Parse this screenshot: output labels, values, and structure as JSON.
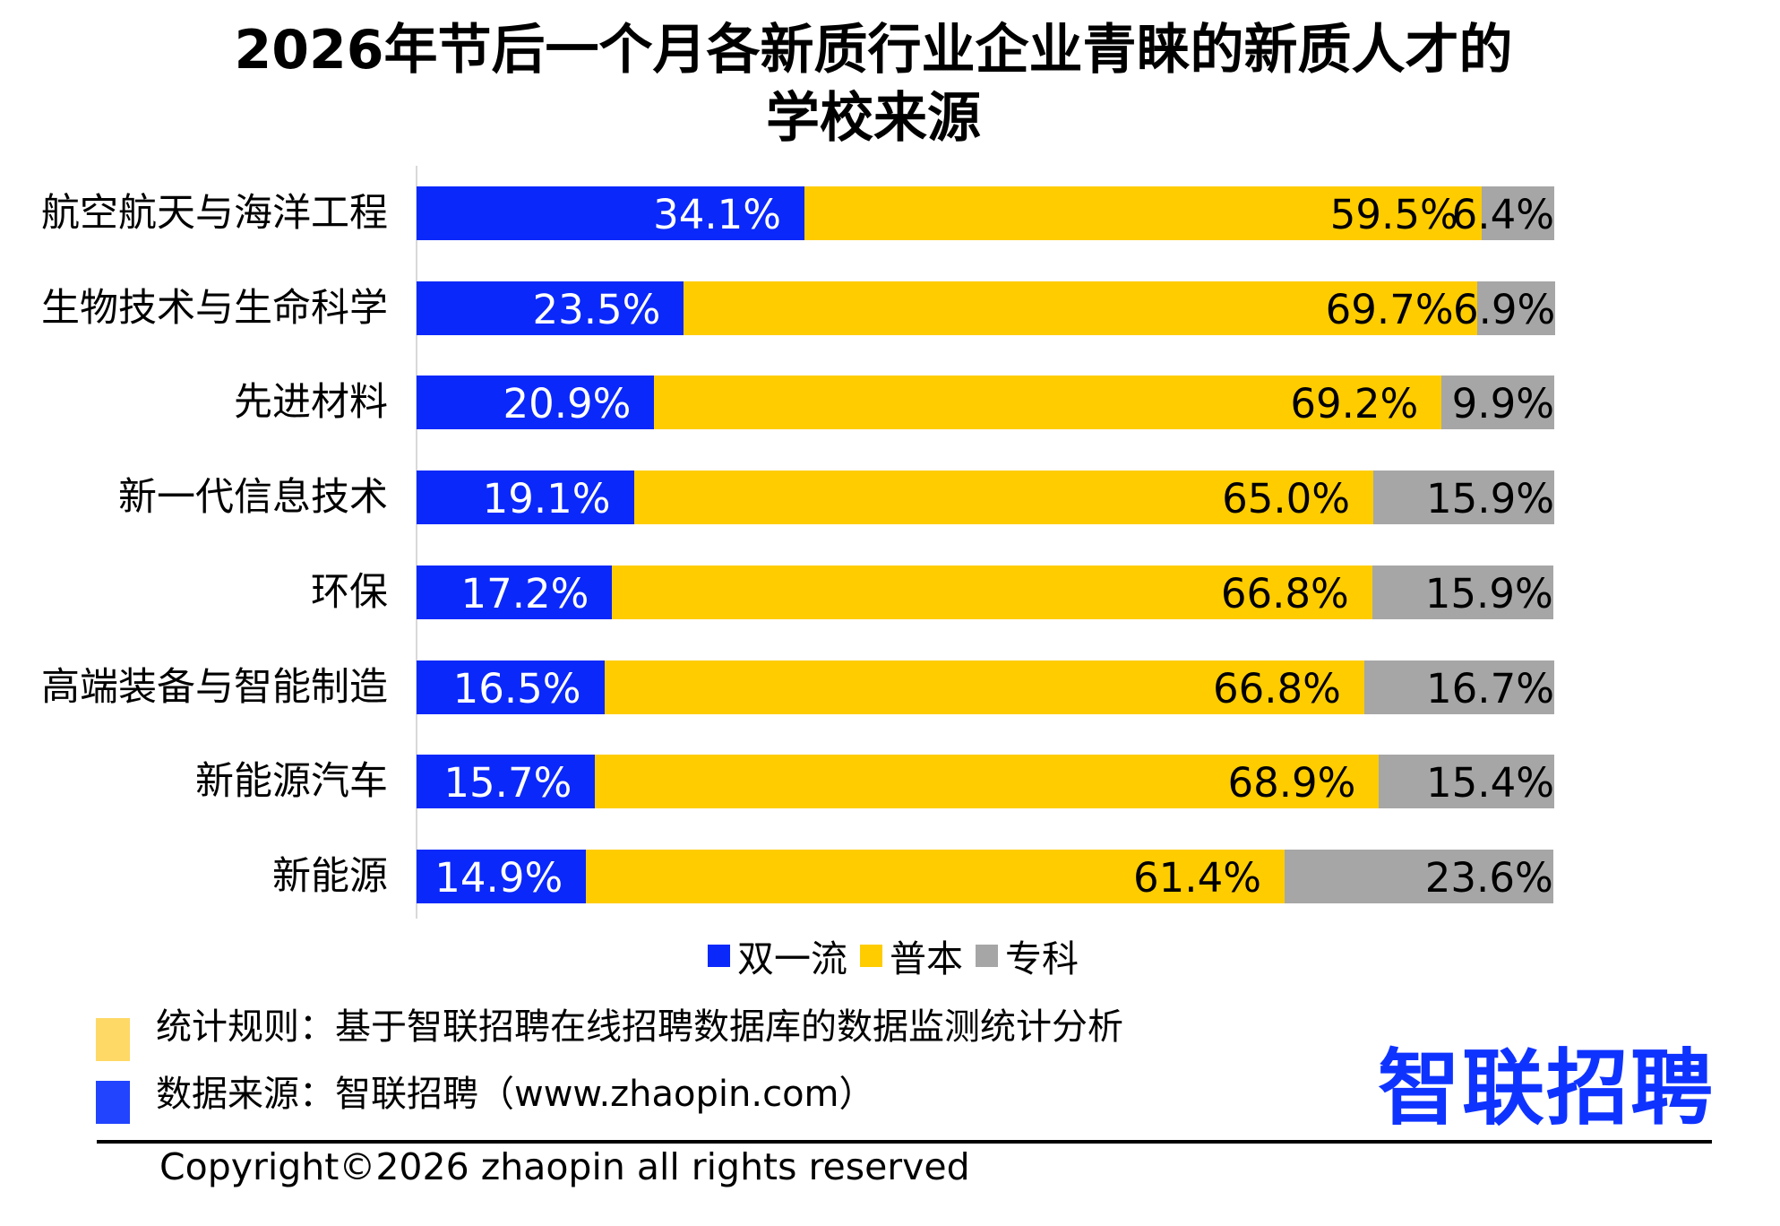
{
  "chart_data": {
    "type": "bar",
    "orientation": "horizontal",
    "stacked": true,
    "title_line1": "2026年节后一个月各新质行业企业青睐的新质人才的",
    "title_line2": "学校来源",
    "categories": [
      "航空航天与海洋工程",
      "生物技术与生命科学",
      "先进材料",
      "新一代信息技术",
      "环保",
      "高端装备与智能制造",
      "新能源汽车",
      "新能源"
    ],
    "series": [
      {
        "name": "双一流",
        "color": "#0a28fa",
        "label_color": "#ffffff",
        "values": [
          34.1,
          23.5,
          20.9,
          19.1,
          17.2,
          16.5,
          15.7,
          14.9
        ]
      },
      {
        "name": "普本",
        "color": "#ffcc00",
        "label_color": "#000000",
        "values": [
          59.5,
          69.7,
          69.2,
          65.0,
          66.8,
          66.8,
          68.9,
          61.4
        ]
      },
      {
        "name": "专科",
        "color": "#a6a6a6",
        "label_color": "#000000",
        "values": [
          6.4,
          6.9,
          9.9,
          15.9,
          15.9,
          16.7,
          15.4,
          23.6
        ]
      }
    ],
    "xlim": [
      0,
      100
    ],
    "legend_position": "bottom",
    "grid": false
  },
  "footer": {
    "rule_text": "统计规则：基于智联招聘在线招聘数据库的数据监测统计分析",
    "source_text": "数据来源：智联招聘（www.zhaopin.com）",
    "rule_color": "#ffd966",
    "source_color": "#2244ff",
    "logo_text": "智联招聘",
    "copyright": "Copyright©2026 zhaopin all rights reserved"
  }
}
